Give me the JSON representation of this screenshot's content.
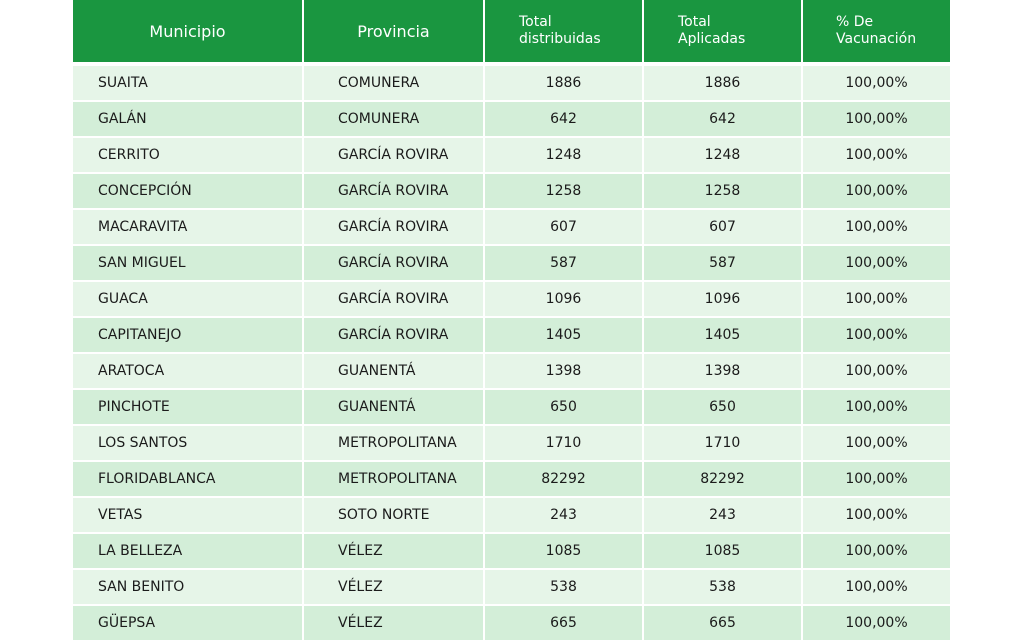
{
  "table": {
    "headers": {
      "municipio": "Municipio",
      "provincia": "Provincia",
      "total_distribuidas": "Total\ndistribuidas",
      "total_aplicadas": "Total\nAplicadas",
      "pct_vacunacion": "% De\nVacunación"
    },
    "colors": {
      "header_bg": "#1a9640",
      "row_light": "#e6f5e8",
      "row_dark": "#d3eed8"
    },
    "rows": [
      {
        "municipio": "SUAITA",
        "provincia": "COMUNERA",
        "distribuidas": "1886",
        "aplicadas": "1886",
        "pct": "100,00%"
      },
      {
        "municipio": "GALÁN",
        "provincia": "COMUNERA",
        "distribuidas": "642",
        "aplicadas": "642",
        "pct": "100,00%"
      },
      {
        "municipio": "CERRITO",
        "provincia": "GARCÍA ROVIRA",
        "distribuidas": "1248",
        "aplicadas": "1248",
        "pct": "100,00%"
      },
      {
        "municipio": "CONCEPCIÓN",
        "provincia": "GARCÍA ROVIRA",
        "distribuidas": "1258",
        "aplicadas": "1258",
        "pct": "100,00%"
      },
      {
        "municipio": "MACARAVITA",
        "provincia": "GARCÍA ROVIRA",
        "distribuidas": "607",
        "aplicadas": "607",
        "pct": "100,00%"
      },
      {
        "municipio": "SAN MIGUEL",
        "provincia": "GARCÍA ROVIRA",
        "distribuidas": "587",
        "aplicadas": "587",
        "pct": "100,00%"
      },
      {
        "municipio": "GUACA",
        "provincia": "GARCÍA ROVIRA",
        "distribuidas": "1096",
        "aplicadas": "1096",
        "pct": "100,00%"
      },
      {
        "municipio": "CAPITANEJO",
        "provincia": "GARCÍA ROVIRA",
        "distribuidas": "1405",
        "aplicadas": "1405",
        "pct": "100,00%"
      },
      {
        "municipio": "ARATOCA",
        "provincia": "GUANENTÁ",
        "distribuidas": "1398",
        "aplicadas": "1398",
        "pct": "100,00%"
      },
      {
        "municipio": "PINCHOTE",
        "provincia": "GUANENTÁ",
        "distribuidas": "650",
        "aplicadas": "650",
        "pct": "100,00%"
      },
      {
        "municipio": "LOS SANTOS",
        "provincia": "METROPOLITANA",
        "distribuidas": "1710",
        "aplicadas": "1710",
        "pct": "100,00%"
      },
      {
        "municipio": "FLORIDABLANCA",
        "provincia": "METROPOLITANA",
        "distribuidas": "82292",
        "aplicadas": "82292",
        "pct": "100,00%"
      },
      {
        "municipio": "VETAS",
        "provincia": "SOTO NORTE",
        "distribuidas": "243",
        "aplicadas": "243",
        "pct": "100,00%"
      },
      {
        "municipio": "LA BELLEZA",
        "provincia": "VÉLEZ",
        "distribuidas": "1085",
        "aplicadas": "1085",
        "pct": "100,00%"
      },
      {
        "municipio": "SAN BENITO",
        "provincia": "VÉLEZ",
        "distribuidas": "538",
        "aplicadas": "538",
        "pct": "100,00%"
      },
      {
        "municipio": "GÜEPSA",
        "provincia": "VÉLEZ",
        "distribuidas": "665",
        "aplicadas": "665",
        "pct": "100,00%"
      }
    ]
  }
}
